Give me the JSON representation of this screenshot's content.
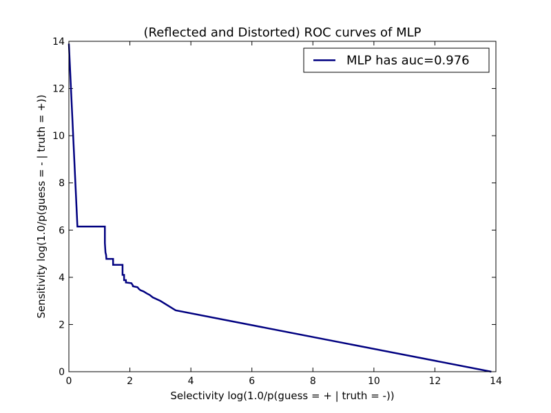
{
  "chart_data": {
    "type": "line",
    "title": "(Reflected and Distorted) ROC curves of MLP",
    "xlabel": "Selectivity log(1.0/p(guess = + | truth = -))",
    "ylabel": "Sensitivity log(1.0/p(guess = - | truth = +))",
    "xlim": [
      0,
      14
    ],
    "ylim": [
      0,
      14
    ],
    "xticks": [
      "0",
      "2",
      "4",
      "6",
      "8",
      "10",
      "12",
      "14"
    ],
    "yticks": [
      "0",
      "2",
      "4",
      "6",
      "8",
      "10",
      "12",
      "14"
    ],
    "grid": false,
    "legend_position": "top-right",
    "series": [
      {
        "name": "MLP has auc=0.976",
        "color": "#000080",
        "x": [
          0.0,
          0.28,
          1.18,
          1.18,
          1.2,
          1.22,
          1.23,
          1.45,
          1.45,
          1.76,
          1.76,
          1.81,
          1.81,
          1.87,
          1.87,
          2.05,
          2.1,
          2.1,
          2.25,
          2.3,
          2.35,
          2.45,
          2.55,
          2.65,
          2.75,
          3.0,
          3.5,
          13.85
        ],
        "y": [
          13.9,
          6.15,
          6.15,
          5.45,
          5.05,
          4.95,
          4.78,
          4.78,
          4.53,
          4.53,
          4.1,
          4.1,
          3.88,
          3.88,
          3.78,
          3.75,
          3.65,
          3.62,
          3.58,
          3.5,
          3.45,
          3.4,
          3.32,
          3.25,
          3.15,
          3.0,
          2.6,
          0.0
        ]
      }
    ]
  }
}
